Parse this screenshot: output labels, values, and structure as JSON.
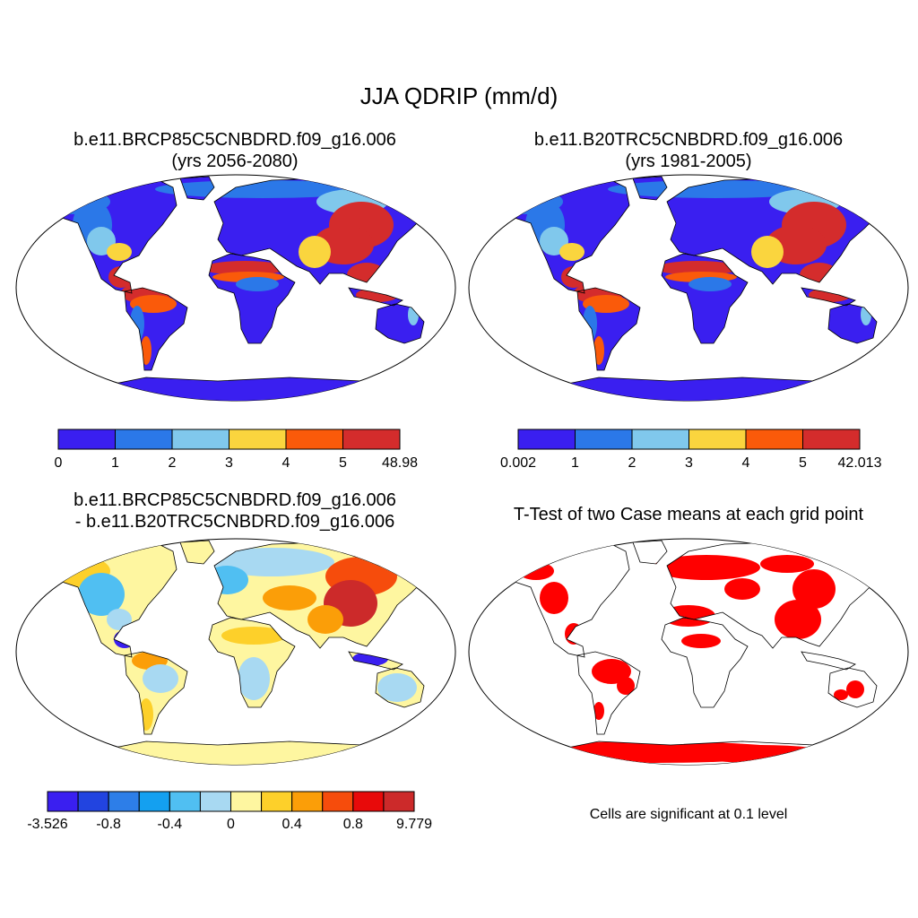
{
  "title": "JJA QDRIP (mm/d)",
  "panels": [
    {
      "id": "case",
      "title_line1": "b.e11.BRCP85C5CNBDRD.f09_g16.006",
      "title_line2": "(yrs 2056-2080)",
      "colorbar": {
        "colors": [
          "#3a1ff0",
          "#2b78e8",
          "#80c8ec",
          "#fad53e",
          "#fa5a0a",
          "#d42c2c"
        ],
        "labels": [
          "0",
          "1",
          "2",
          "3",
          "4",
          "5",
          "48.98"
        ]
      }
    },
    {
      "id": "ref",
      "title_line1": "b.e11.B20TRC5CNBDRD.f09_g16.006",
      "title_line2": "(yrs 1981-2005)",
      "colorbar": {
        "colors": [
          "#3a1ff0",
          "#2b78e8",
          "#80c8ec",
          "#fad53e",
          "#fa5a0a",
          "#d42c2c"
        ],
        "labels": [
          "0.002",
          "1",
          "2",
          "3",
          "4",
          "5",
          "42.013"
        ]
      }
    },
    {
      "id": "diff",
      "title_line1": "b.e11.BRCP85C5CNBDRD.f09_g16.006",
      "title_line2": "- b.e11.B20TRC5CNBDRD.f09_g16.006",
      "colorbar": {
        "colors": [
          "#3a1ff0",
          "#2244e0",
          "#2d7ee8",
          "#14a0f0",
          "#50bff2",
          "#a8d9f2",
          "#fef6a0",
          "#fdd02a",
          "#fb9e08",
          "#f64c0c",
          "#e80a0a",
          "#cc2a2a"
        ],
        "labels": [
          "-3.526",
          "-0.8",
          "-0.4",
          "0",
          "0.4",
          "0.8",
          "9.779"
        ]
      }
    },
    {
      "id": "ttest",
      "title_line1": "T-Test of two Case means at each grid point",
      "note": "Cells are significant at 0.1 level",
      "color": "#ff0000"
    }
  ]
}
